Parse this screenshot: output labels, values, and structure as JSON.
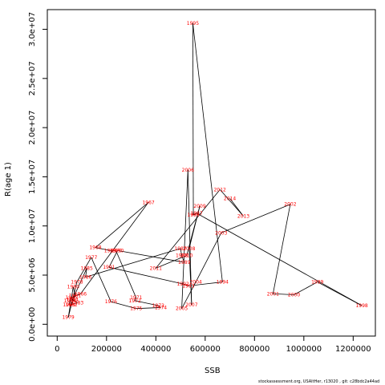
{
  "chart_data": {
    "type": "line",
    "title": "",
    "xlabel": "SSB",
    "ylabel": "R(age 1)",
    "xlim": [
      -40000,
      1290000
    ],
    "ylim": [
      -1200000,
      32000000
    ],
    "x_ticks": [
      {
        "value": 0,
        "label": "0"
      },
      {
        "value": 200000,
        "label": "200000"
      },
      {
        "value": 400000,
        "label": "400000"
      },
      {
        "value": 600000,
        "label": "600000"
      },
      {
        "value": 800000,
        "label": "800000"
      },
      {
        "value": 1000000,
        "label": "1000000"
      },
      {
        "value": 1200000,
        "label": "1200000"
      }
    ],
    "y_ticks": [
      {
        "value": 0,
        "label": "0.0e+00"
      },
      {
        "value": 5000000,
        "label": "5.0e+06"
      },
      {
        "value": 10000000,
        "label": "1.0e+07"
      },
      {
        "value": 15000000,
        "label": "1.5e+07"
      },
      {
        "value": 20000000,
        "label": "2.0e+07"
      },
      {
        "value": 25000000,
        "label": "2.5e+07"
      },
      {
        "value": 30000000,
        "label": "3.0e+07"
      }
    ],
    "grid": false,
    "line_color": "#000000",
    "label_color": "#ff0000",
    "points": [
      {
        "year": "1963",
        "x": 48000,
        "y": 2000000
      },
      {
        "year": "1964",
        "x": 52000,
        "y": 2400000
      },
      {
        "year": "1965",
        "x": 58000,
        "y": 2700000
      },
      {
        "year": "1966",
        "x": 95000,
        "y": 3100000
      },
      {
        "year": "1967",
        "x": 370000,
        "y": 12400000
      },
      {
        "year": "1968",
        "x": 155000,
        "y": 7800000
      },
      {
        "year": "1969",
        "x": 215000,
        "y": 7500000
      },
      {
        "year": "1970",
        "x": 238000,
        "y": 7500000
      },
      {
        "year": "1971",
        "x": 320000,
        "y": 2700000
      },
      {
        "year": "1972",
        "x": 315000,
        "y": 2400000
      },
      {
        "year": "1973",
        "x": 410000,
        "y": 1900000
      },
      {
        "year": "1974",
        "x": 420000,
        "y": 1700000
      },
      {
        "year": "1975",
        "x": 320000,
        "y": 1600000
      },
      {
        "year": "1976",
        "x": 218000,
        "y": 2300000
      },
      {
        "year": "1977",
        "x": 138000,
        "y": 6800000
      },
      {
        "year": "1978",
        "x": 80000,
        "y": 4300000
      },
      {
        "year": "1979",
        "x": 45000,
        "y": 700000
      },
      {
        "year": "1980",
        "x": 65000,
        "y": 3800000
      },
      {
        "year": "1981",
        "x": 72000,
        "y": 2900000
      },
      {
        "year": "1982",
        "x": 58000,
        "y": 2000000
      },
      {
        "year": "1983",
        "x": 82000,
        "y": 2200000
      },
      {
        "year": "1984",
        "x": 62000,
        "y": 2500000
      },
      {
        "year": "1985",
        "x": 120000,
        "y": 5700000
      },
      {
        "year": "1986",
        "x": 115000,
        "y": 4800000
      },
      {
        "year": "1987",
        "x": 500000,
        "y": 7700000
      },
      {
        "year": "1988",
        "x": 505000,
        "y": 7000000
      },
      {
        "year": "1989",
        "x": 515000,
        "y": 6300000
      },
      {
        "year": "1990",
        "x": 245000,
        "y": 7500000
      },
      {
        "year": "1991",
        "x": 210000,
        "y": 5800000
      },
      {
        "year": "1992",
        "x": 510000,
        "y": 4100000
      },
      {
        "year": "1993",
        "x": 532000,
        "y": 3900000
      },
      {
        "year": "1994",
        "x": 670000,
        "y": 4300000
      },
      {
        "year": "1995",
        "x": 550000,
        "y": 30600000
      },
      {
        "year": "1996",
        "x": 552000,
        "y": 11100000
      },
      {
        "year": "1997",
        "x": 565000,
        "y": 11300000
      },
      {
        "year": "1998",
        "x": 1235000,
        "y": 1900000
      },
      {
        "year": "1999",
        "x": 1055000,
        "y": 4300000
      },
      {
        "year": "2000",
        "x": 960000,
        "y": 3000000
      },
      {
        "year": "2001",
        "x": 875000,
        "y": 3100000
      },
      {
        "year": "2002",
        "x": 945000,
        "y": 12200000
      },
      {
        "year": "2003",
        "x": 665000,
        "y": 9300000
      },
      {
        "year": "2004",
        "x": 562000,
        "y": 4300000
      },
      {
        "year": "2005",
        "x": 505000,
        "y": 1600000
      },
      {
        "year": "2006",
        "x": 530000,
        "y": 15700000
      },
      {
        "year": "2007",
        "x": 545000,
        "y": 2000000
      },
      {
        "year": "2008",
        "x": 535000,
        "y": 7700000
      },
      {
        "year": "2009",
        "x": 578000,
        "y": 12000000
      },
      {
        "year": "2010",
        "x": 525000,
        "y": 7000000
      },
      {
        "year": "2011",
        "x": 400000,
        "y": 5700000
      },
      {
        "year": "2012",
        "x": 660000,
        "y": 13700000
      },
      {
        "year": "2013",
        "x": 755000,
        "y": 11000000
      },
      {
        "year": "2014",
        "x": 700000,
        "y": 12800000
      }
    ]
  },
  "footer_text": "stockassessment.org, USAItHer, r13020 , git: c28bdc2a44ad"
}
